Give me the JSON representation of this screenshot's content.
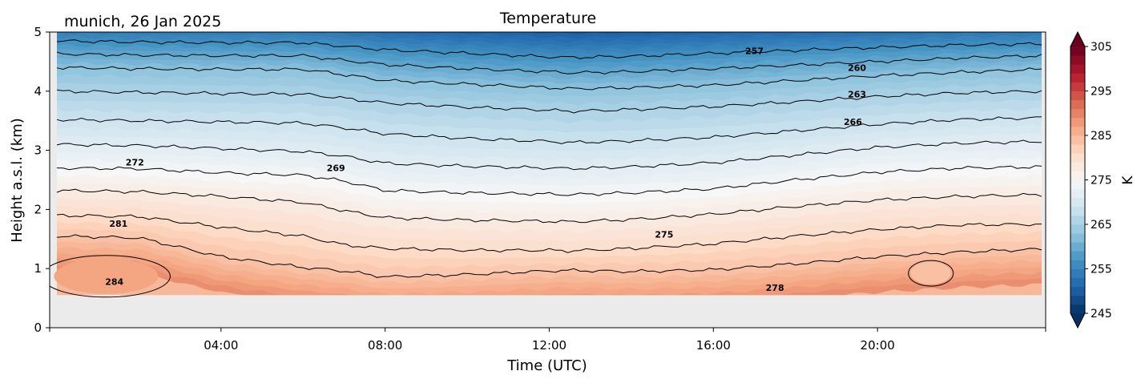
{
  "figure": {
    "location_date": "munich, 26 Jan 2025",
    "title": "Temperature"
  },
  "chart_data": {
    "type": "heatmap",
    "title": "Temperature",
    "annotation": "munich, 26 Jan 2025",
    "xlabel": "Time (UTC)",
    "ylabel": "Height a.s.l. (km)",
    "x_range_hours": [
      0,
      24
    ],
    "ylim": [
      0,
      5
    ],
    "xticks": [
      "04:00",
      "08:00",
      "12:00",
      "16:00",
      "20:00"
    ],
    "xtick_hours": [
      4,
      8,
      12,
      16,
      20
    ],
    "yticks": [
      0,
      1,
      2,
      3,
      4,
      5
    ],
    "data_bottom_km": 0.55,
    "colorbar": {
      "label": "K",
      "vmin": 245,
      "vmax": 305,
      "step": 2,
      "ticks": [
        245,
        255,
        265,
        275,
        285,
        295,
        305
      ],
      "colormap": "RdBu_r",
      "extend": "both"
    },
    "contour_interval_K": 3,
    "contour_levels_K": [
      257,
      260,
      263,
      266,
      269,
      272,
      275,
      278,
      281,
      284
    ],
    "contour_labels": [
      {
        "text": "257",
        "hour": 17.0,
        "km": 4.68
      },
      {
        "text": "260",
        "hour": 19.5,
        "km": 4.4
      },
      {
        "text": "263",
        "hour": 19.5,
        "km": 3.95
      },
      {
        "text": "266",
        "hour": 19.4,
        "km": 3.48
      },
      {
        "text": "269",
        "hour": 6.8,
        "km": 2.7
      },
      {
        "text": "272",
        "hour": 1.9,
        "km": 2.8
      },
      {
        "text": "275",
        "hour": 14.8,
        "km": 1.58
      },
      {
        "text": "278",
        "hour": 17.5,
        "km": 0.68
      },
      {
        "text": "281",
        "hour": 1.5,
        "km": 1.76
      },
      {
        "text": "284",
        "hour": 1.4,
        "km": 0.78
      }
    ],
    "isotherm_heights_km": {
      "hours": [
        0,
        2,
        4,
        6,
        7,
        8,
        10,
        12,
        12.5,
        14,
        16,
        18,
        20,
        22,
        24
      ],
      "257": [
        4.85,
        4.83,
        4.82,
        4.82,
        4.76,
        4.7,
        4.64,
        4.58,
        4.57,
        4.59,
        4.64,
        4.69,
        4.74,
        4.78,
        4.8
      ],
      "260": [
        4.63,
        4.61,
        4.6,
        4.6,
        4.52,
        4.45,
        4.38,
        4.33,
        4.31,
        4.33,
        4.38,
        4.44,
        4.5,
        4.56,
        4.6
      ],
      "263": [
        4.4,
        4.38,
        4.37,
        4.37,
        4.28,
        4.18,
        4.12,
        4.06,
        4.04,
        4.06,
        4.1,
        4.18,
        4.26,
        4.32,
        4.37
      ],
      "266": [
        4.0,
        3.98,
        3.96,
        3.95,
        3.88,
        3.8,
        3.73,
        3.68,
        3.66,
        3.69,
        3.74,
        3.82,
        3.91,
        3.97,
        4.0
      ],
      "269": [
        3.52,
        3.5,
        3.48,
        3.46,
        3.38,
        3.28,
        3.2,
        3.15,
        3.13,
        3.16,
        3.22,
        3.33,
        3.44,
        3.52,
        3.55
      ],
      "272": [
        3.1,
        3.08,
        3.03,
        2.98,
        2.9,
        2.78,
        2.73,
        2.7,
        2.69,
        2.72,
        2.79,
        2.92,
        3.05,
        3.12,
        3.15
      ],
      "275": [
        2.7,
        2.69,
        2.62,
        2.58,
        2.48,
        2.32,
        2.28,
        2.26,
        2.25,
        2.28,
        2.35,
        2.5,
        2.63,
        2.7,
        2.72
      ],
      "278": [
        2.32,
        2.3,
        2.22,
        2.12,
        1.98,
        1.86,
        1.82,
        1.8,
        1.79,
        1.83,
        1.92,
        2.05,
        2.16,
        2.22,
        2.25
      ],
      "281": [
        1.9,
        1.88,
        1.7,
        1.55,
        1.4,
        1.34,
        1.31,
        1.31,
        1.3,
        1.34,
        1.42,
        1.55,
        1.66,
        1.74,
        1.75
      ],
      "284": [
        1.55,
        1.52,
        1.2,
        1.02,
        0.96,
        0.86,
        0.9,
        0.96,
        0.97,
        0.95,
        0.98,
        1.08,
        1.2,
        1.28,
        1.33
      ]
    },
    "warm_cores": [
      {
        "level_K": 287,
        "hour": 1.2,
        "km": 0.87
      },
      {
        "level_K": 284,
        "hour": 21.3,
        "km": 0.92
      }
    ]
  }
}
